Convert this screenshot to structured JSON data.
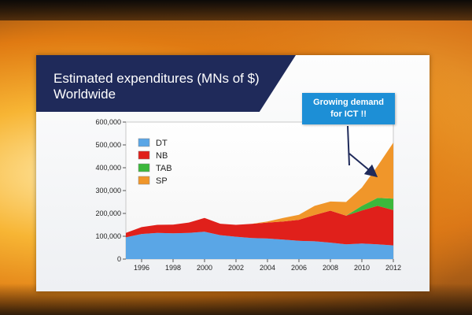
{
  "slide": {
    "title_line1": "Estimated expenditures (MNs of $)",
    "title_line2": "Worldwide",
    "callout_line1": "Growing demand",
    "callout_line2": "for ICT !!"
  },
  "chart_data": {
    "type": "area",
    "stacked": true,
    "title": "Estimated expenditures (MNs of $) Worldwide",
    "xlabel": "",
    "ylabel": "",
    "x": [
      1995,
      1996,
      1997,
      1998,
      1999,
      2000,
      2001,
      2002,
      2003,
      2004,
      2005,
      2006,
      2007,
      2008,
      2009,
      2010,
      2011,
      2012
    ],
    "xticks": [
      1996,
      1998,
      2000,
      2002,
      2004,
      2006,
      2008,
      2010,
      2012
    ],
    "xlim": [
      1995,
      2012
    ],
    "ylim": [
      0,
      600000
    ],
    "yticks": [
      0,
      100000,
      200000,
      300000,
      400000,
      500000,
      600000
    ],
    "ytick_labels": [
      "0",
      "100,000",
      "200,000",
      "300,000",
      "400,000",
      "500,000",
      "600,000"
    ],
    "legend_position": "top-left",
    "series": [
      {
        "name": "DT",
        "color": "#5aa6e6",
        "values": [
          95000,
          110000,
          115000,
          113000,
          115000,
          120000,
          105000,
          98000,
          92000,
          90000,
          85000,
          80000,
          78000,
          72000,
          65000,
          68000,
          65000,
          60000
        ]
      },
      {
        "name": "NB",
        "color": "#e0201b",
        "values": [
          20000,
          30000,
          35000,
          38000,
          45000,
          60000,
          50000,
          52000,
          62000,
          70000,
          80000,
          92000,
          115000,
          140000,
          125000,
          145000,
          168000,
          155000
        ]
      },
      {
        "name": "TAB",
        "color": "#3cb83c",
        "values": [
          0,
          0,
          0,
          0,
          0,
          0,
          0,
          0,
          0,
          0,
          0,
          0,
          0,
          0,
          0,
          20000,
          35000,
          50000
        ]
      },
      {
        "name": "SP",
        "color": "#f0962a",
        "values": [
          0,
          0,
          0,
          0,
          0,
          0,
          0,
          0,
          0,
          5000,
          15000,
          22000,
          40000,
          40000,
          60000,
          80000,
          140000,
          245000
        ]
      }
    ]
  }
}
